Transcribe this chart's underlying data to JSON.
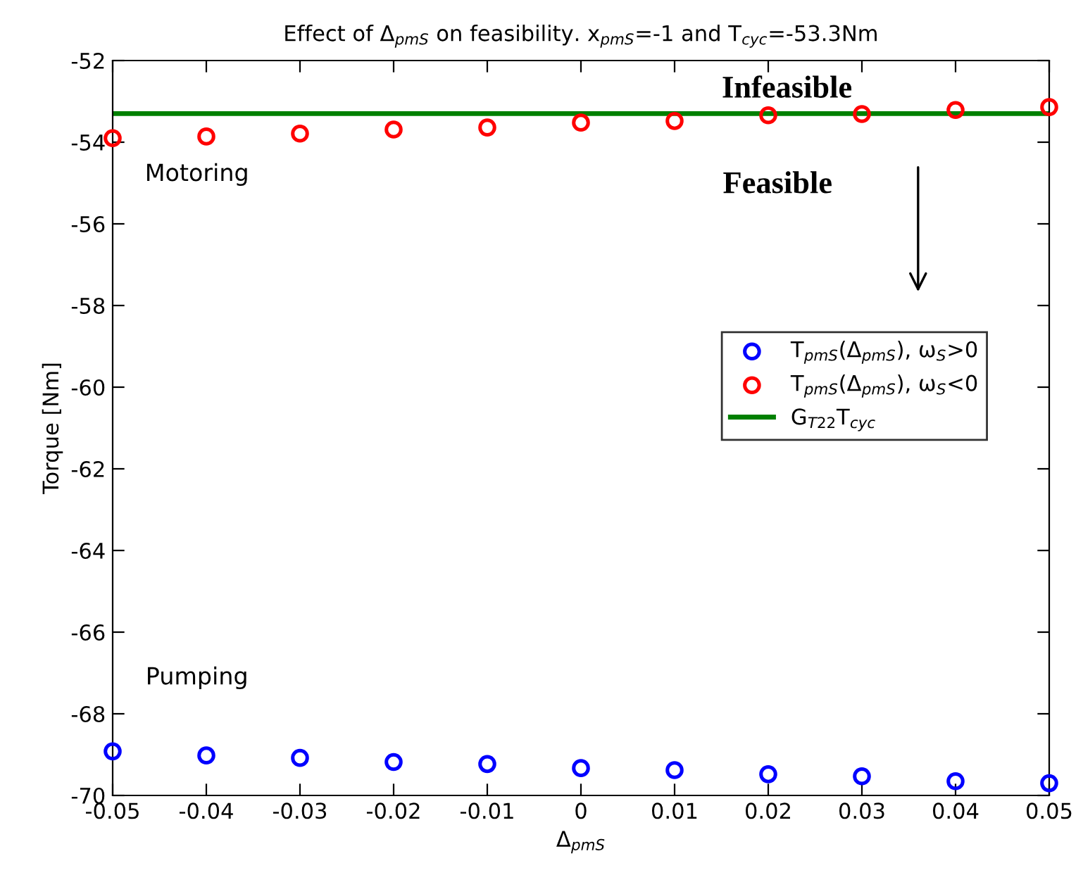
{
  "chart_data": {
    "type": "scatter",
    "title": "Effect of Δ$_{pmS}$ on feasibility. x$_{pmS}$=-1 and T$_{cyc}$=-53.3Nm",
    "xlabel": "Δ$_{pmS}$",
    "ylabel": "Torque [Nm]",
    "x": [
      -0.05,
      -0.04,
      -0.03,
      -0.02,
      -0.01,
      0,
      0.01,
      0.02,
      0.03,
      0.04,
      0.05
    ],
    "series": [
      {
        "name": "T$_{pmS}$(Δ$_{pmS}$), ω$_{S}$>0",
        "color": "#0000ff",
        "marker": "circle",
        "values": [
          -68.92,
          -69.02,
          -69.08,
          -69.18,
          -69.23,
          -69.33,
          -69.38,
          -69.48,
          -69.53,
          -69.65,
          -69.7
        ]
      },
      {
        "name": "T$_{pmS}$(Δ$_{pmS}$), ω$_{S}$<0",
        "color": "#ff0000",
        "marker": "circle",
        "values": [
          -53.9,
          -53.86,
          -53.79,
          -53.69,
          -53.64,
          -53.52,
          -53.48,
          -53.34,
          -53.31,
          -53.21,
          -53.14
        ]
      },
      {
        "name": "G$_{T22}$T$_{cyc}$",
        "type": "line",
        "color": "#008000",
        "x": [
          -0.05,
          0.05
        ],
        "values": [
          -53.3,
          -53.3
        ]
      }
    ],
    "xlim": [
      -0.05,
      0.05
    ],
    "xticks": [
      -0.05,
      -0.04,
      -0.03,
      -0.02,
      -0.01,
      0,
      0.01,
      0.02,
      0.03,
      0.04,
      0.05
    ],
    "ylim": [
      -70,
      -52
    ],
    "yticks": [
      -52,
      -54,
      -56,
      -58,
      -60,
      -62,
      -64,
      -66,
      -68,
      -70
    ],
    "grid": false,
    "legend": "right",
    "annotations": [
      "Infeasible",
      "Feasible",
      "Motoring",
      "Pumping"
    ]
  }
}
